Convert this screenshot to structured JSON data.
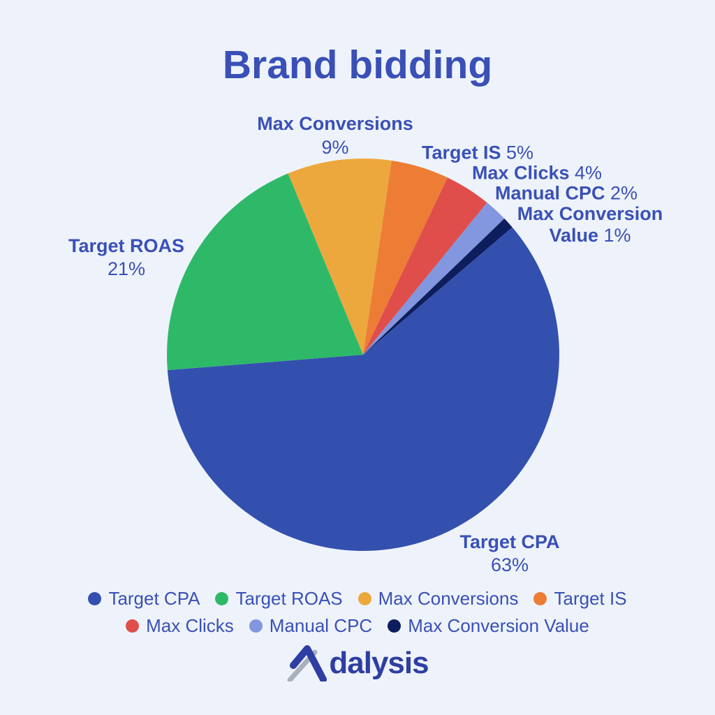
{
  "title": "Brand bidding",
  "chart_data": {
    "type": "pie",
    "title": "Brand bidding",
    "slices": [
      {
        "label": "Max Conversions",
        "value": 9,
        "pct_label": "9%",
        "color": "#eda83d"
      },
      {
        "label": "Target IS",
        "value": 5,
        "pct_label": "5%",
        "color": "#ed7d35"
      },
      {
        "label": "Max Clicks",
        "value": 4,
        "pct_label": "4%",
        "color": "#e04e4b"
      },
      {
        "label": "Manual CPC",
        "value": 2,
        "pct_label": "2%",
        "color": "#8297e0"
      },
      {
        "label": "Max Conversion Value",
        "value": 1,
        "pct_label": "1%",
        "color": "#0e1d5b"
      },
      {
        "label": "Target CPA",
        "value": 63,
        "pct_label": "63%",
        "color": "#3350af"
      },
      {
        "label": "Target ROAS",
        "value": 21,
        "pct_label": "21%",
        "color": "#2eb969"
      }
    ],
    "start_angle_deg_from_12": -22.5,
    "legend_position": "bottom",
    "grid": false
  },
  "callouts": {
    "max_conversions": {
      "name": "Max Conversions",
      "pct": "9%"
    },
    "target_is": {
      "name": "Target IS",
      "pct": "5%"
    },
    "max_clicks": {
      "name": "Max Clicks",
      "pct": "4%"
    },
    "manual_cpc": {
      "name": "Manual CPC",
      "pct": "2%"
    },
    "max_conversion_value": {
      "name_line1": "Max Conversion",
      "name_line2": "Value",
      "pct": "1%"
    },
    "target_roas": {
      "name": "Target ROAS",
      "pct": "21%"
    },
    "target_cpa": {
      "name": "Target CPA",
      "pct": "63%"
    }
  },
  "legend": {
    "rows": [
      [
        {
          "label": "Target CPA",
          "color": "#3350af"
        },
        {
          "label": "Target ROAS",
          "color": "#2eb969"
        },
        {
          "label": "Max Conversions",
          "color": "#eda83d"
        },
        {
          "label": "Target IS",
          "color": "#ed7d35"
        }
      ],
      [
        {
          "label": "Max Clicks",
          "color": "#e04e4b"
        },
        {
          "label": "Manual CPC",
          "color": "#8297e0"
        },
        {
          "label": "Max Conversion Value",
          "color": "#0e1d5b"
        }
      ]
    ]
  },
  "brand": {
    "name": "Adalysis",
    "wordmark_tail": "dalysis"
  },
  "colors": {
    "background": "#eef3fb",
    "text": "#3a50b6",
    "logo_blue": "#2f3ea2",
    "logo_gray": "#a9b0bb"
  }
}
